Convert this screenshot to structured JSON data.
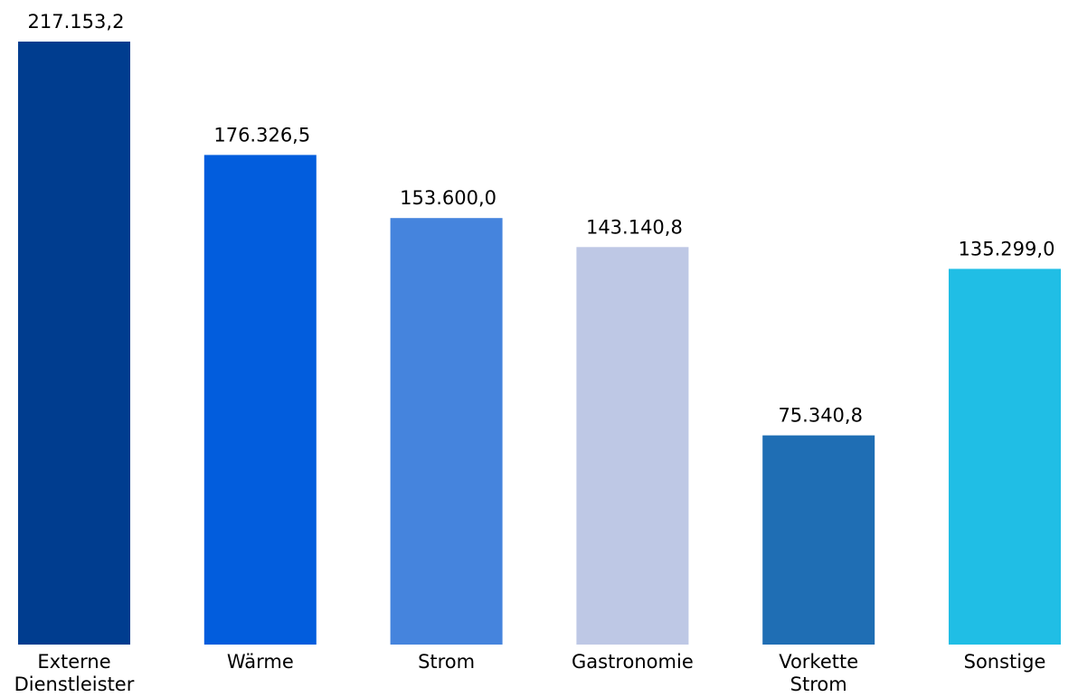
{
  "chart_data": {
    "type": "bar",
    "title": "",
    "xlabel": "",
    "ylabel": "",
    "ylim": [
      0,
      217153.2
    ],
    "grid": false,
    "legend": "none",
    "axes_visible": false,
    "categories": [
      [
        "Externe",
        "Dienstleister"
      ],
      [
        "Wärme"
      ],
      [
        "Strom"
      ],
      [
        "Gastronomie"
      ],
      [
        "Vorkette",
        "Strom"
      ],
      [
        "Sonstige"
      ]
    ],
    "values": [
      217153.2,
      176326.5,
      153600.0,
      143140.8,
      75340.8,
      135299.0
    ],
    "value_labels": [
      "217.153,2",
      "176.326,5",
      "153.600,0",
      "143.140,8",
      "75.340,8",
      "135.299,0"
    ],
    "colors": [
      "#003d8f",
      "#025ddd",
      "#4584dd",
      "#bec8e5",
      "#1f6eb4",
      "#20bee5"
    ]
  }
}
